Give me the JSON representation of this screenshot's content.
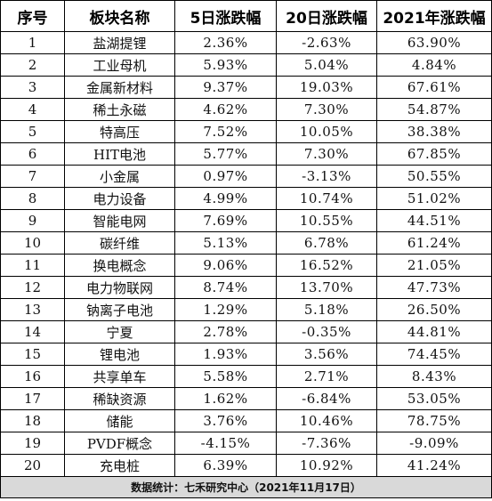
{
  "table": {
    "headers": [
      "序号",
      "板块名称",
      "5日涨跌幅",
      "20日涨跌幅",
      "2021年涨跌幅"
    ],
    "rows": [
      [
        "1",
        "盐湖提锂",
        "2.36%",
        "-2.63%",
        "63.90%"
      ],
      [
        "2",
        "工业母机",
        "5.93%",
        "5.04%",
        "4.84%"
      ],
      [
        "3",
        "金属新材料",
        "9.37%",
        "19.03%",
        "67.61%"
      ],
      [
        "4",
        "稀土永磁",
        "4.62%",
        "7.30%",
        "54.87%"
      ],
      [
        "5",
        "特高压",
        "7.52%",
        "10.05%",
        "38.38%"
      ],
      [
        "6",
        "HIT电池",
        "5.77%",
        "7.30%",
        "67.85%"
      ],
      [
        "7",
        "小金属",
        "0.97%",
        "-3.13%",
        "50.55%"
      ],
      [
        "8",
        "电力设备",
        "4.99%",
        "10.74%",
        "51.02%"
      ],
      [
        "9",
        "智能电网",
        "7.69%",
        "10.55%",
        "44.51%"
      ],
      [
        "10",
        "碳纤维",
        "5.13%",
        "6.78%",
        "61.24%"
      ],
      [
        "11",
        "换电概念",
        "9.06%",
        "16.52%",
        "21.05%"
      ],
      [
        "12",
        "电力物联网",
        "8.74%",
        "13.70%",
        "47.73%"
      ],
      [
        "13",
        "钠离子电池",
        "1.29%",
        "5.18%",
        "26.50%"
      ],
      [
        "14",
        "宁夏",
        "2.78%",
        "-0.35%",
        "44.81%"
      ],
      [
        "15",
        "锂电池",
        "1.93%",
        "3.56%",
        "74.45%"
      ],
      [
        "16",
        "共享单车",
        "5.58%",
        "2.71%",
        "8.43%"
      ],
      [
        "17",
        "稀缺资源",
        "1.62%",
        "-6.84%",
        "53.05%"
      ],
      [
        "18",
        "储能",
        "3.76%",
        "10.46%",
        "78.75%"
      ],
      [
        "19",
        "PVDF概念",
        "-4.15%",
        "-7.36%",
        "-9.09%"
      ],
      [
        "20",
        "充电桩",
        "6.39%",
        "10.92%",
        "41.24%"
      ]
    ],
    "footer": "数据统计：七禾研究中心（2021年11月17日）"
  }
}
